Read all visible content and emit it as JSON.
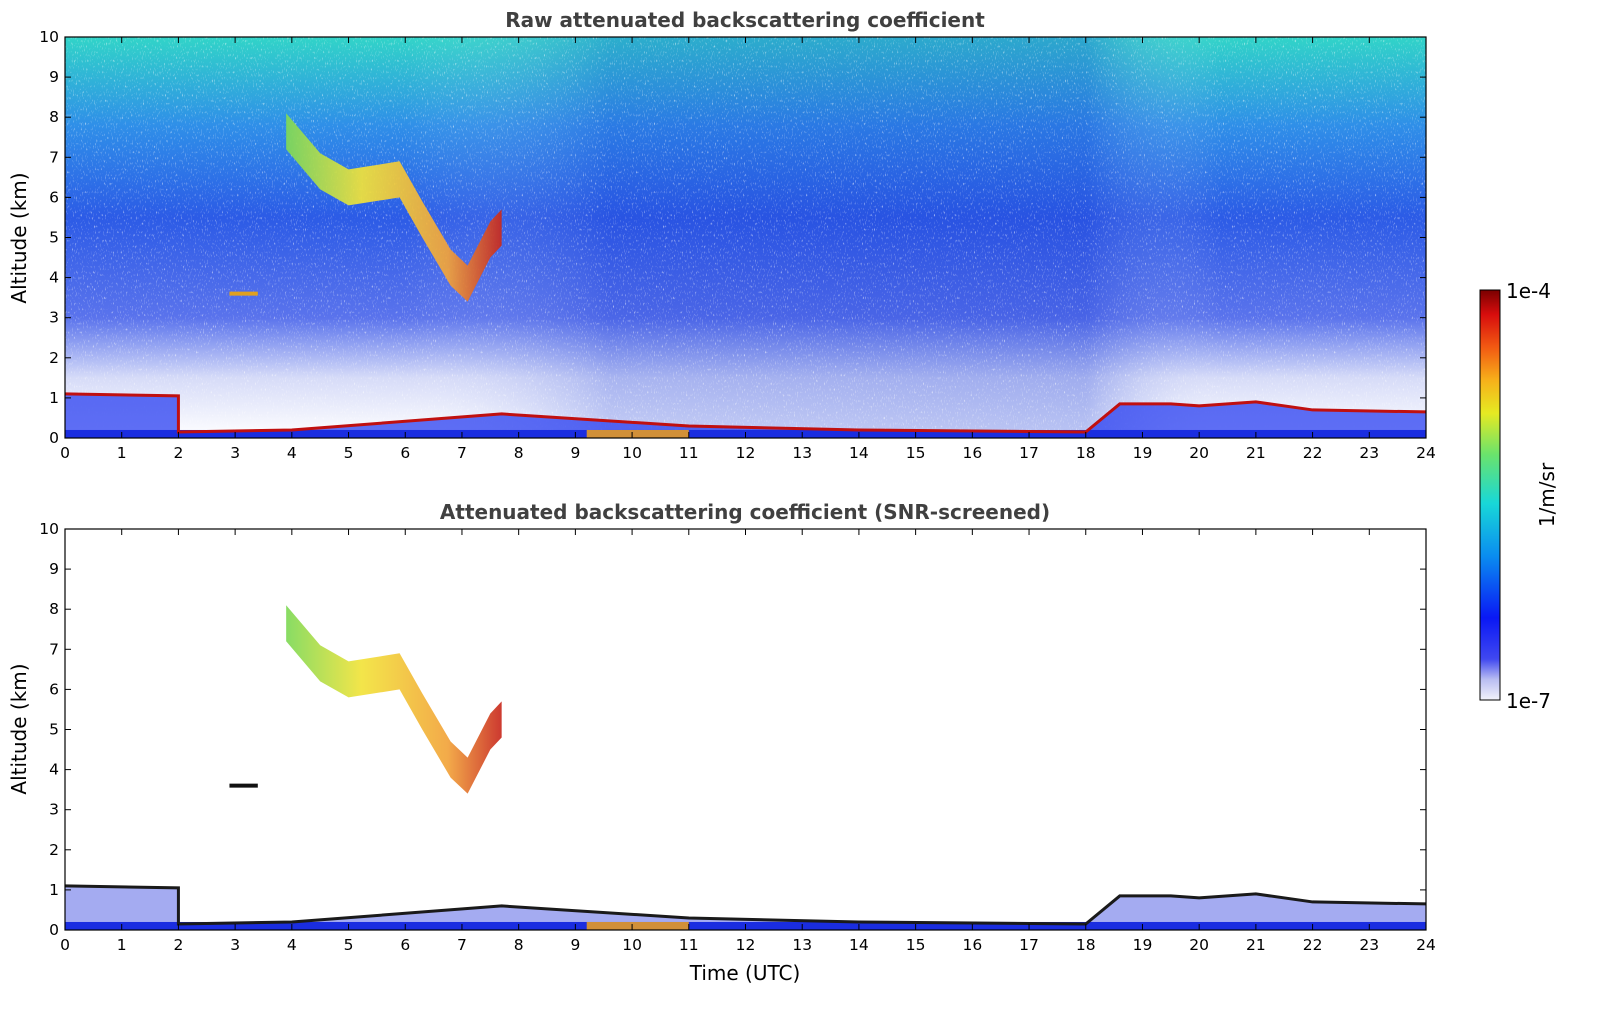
{
  "chart_data": [
    {
      "type": "heatmap",
      "title": "Raw attenuated backscattering coefficient",
      "xlabel": "",
      "ylabel": "Altitude (km)",
      "xlim": [
        0,
        24
      ],
      "ylim": [
        0,
        10
      ],
      "x_ticks": [
        "0",
        "1",
        "2",
        "3",
        "4",
        "5",
        "6",
        "7",
        "8",
        "9",
        "10",
        "11",
        "12",
        "13",
        "14",
        "15",
        "16",
        "17",
        "18",
        "19",
        "20",
        "21",
        "22",
        "23",
        "24"
      ],
      "y_ticks": [
        "0",
        "1",
        "2",
        "3",
        "4",
        "5",
        "6",
        "7",
        "8",
        "9",
        "10"
      ],
      "features": [
        {
          "feature": "boundary_layer_top",
          "t_start": 0,
          "t_end": 24,
          "points": [
            [
              0,
              1.1
            ],
            [
              2,
              1.05
            ],
            [
              2,
              0.15
            ],
            [
              4,
              0.2
            ],
            [
              7.7,
              0.6
            ],
            [
              11,
              0.3
            ],
            [
              14,
              0.2
            ],
            [
              18,
              0.15
            ],
            [
              18.6,
              0.85
            ],
            [
              19.5,
              0.85
            ],
            [
              20,
              0.8
            ],
            [
              21,
              0.9
            ],
            [
              22,
              0.7
            ],
            [
              24,
              0.65
            ]
          ]
        },
        {
          "feature": "cirrus_cloud",
          "t_start": 3.9,
          "t_end": 7.7,
          "points": [
            [
              3.9,
              7.2
            ],
            [
              4.5,
              6.2
            ],
            [
              5,
              5.8
            ],
            [
              5.9,
              6.0
            ],
            [
              6.3,
              5.0
            ],
            [
              6.8,
              3.8
            ],
            [
              7.1,
              3.4
            ],
            [
              7.5,
              4.5
            ],
            [
              7.7,
              4.8
            ]
          ]
        },
        {
          "feature": "elevated_layer",
          "t_start": 2.9,
          "t_end": 3.4,
          "altitude": 3.6
        }
      ],
      "colorbar": {
        "min": "1e-7",
        "max": "1e-4",
        "label": "1/m/sr"
      }
    },
    {
      "type": "heatmap",
      "title": "Attenuated backscattering coefficient (SNR-screened)",
      "xlabel": "Time (UTC)",
      "ylabel": "Altitude (km)",
      "xlim": [
        0,
        24
      ],
      "ylim": [
        0,
        10
      ],
      "x_ticks": [
        "0",
        "1",
        "2",
        "3",
        "4",
        "5",
        "6",
        "7",
        "8",
        "9",
        "10",
        "11",
        "12",
        "13",
        "14",
        "15",
        "16",
        "17",
        "18",
        "19",
        "20",
        "21",
        "22",
        "23",
        "24"
      ],
      "y_ticks": [
        "0",
        "1",
        "2",
        "3",
        "4",
        "5",
        "6",
        "7",
        "8",
        "9",
        "10"
      ]
    }
  ],
  "colorbar": {
    "max_label": "1e-4",
    "min_label": "1e-7",
    "unit_label": "1/m/sr"
  }
}
